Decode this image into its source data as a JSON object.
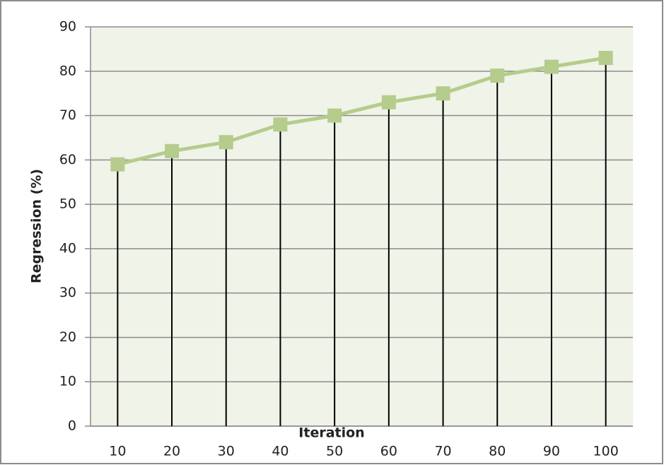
{
  "chart_data": {
    "type": "line",
    "x_label": "Iteration",
    "y_label": "Regression (%)",
    "categories": [
      "10",
      "20",
      "30",
      "40",
      "50",
      "60",
      "70",
      "80",
      "90",
      "100"
    ],
    "values": [
      59,
      62,
      64,
      68,
      70,
      73,
      75,
      79,
      81,
      83
    ],
    "color": "#b5cc8c",
    "ylim": [
      0,
      90
    ],
    "yticks": [
      0,
      10,
      20,
      30,
      40,
      50,
      60,
      70,
      80,
      90
    ],
    "grid": true,
    "drop_lines": true
  }
}
